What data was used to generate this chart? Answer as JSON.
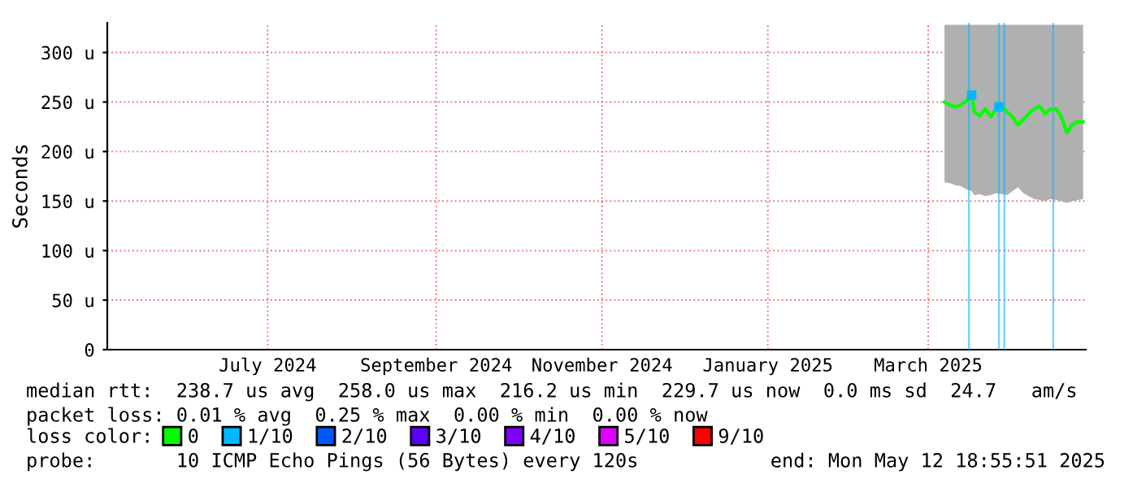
{
  "chart_data": {
    "type": "line",
    "ylabel": "Seconds",
    "xlim": [
      "2024-05-17",
      "2025-05-12"
    ],
    "xticks": [
      {
        "value": "2024-07-15",
        "label": "July 2024"
      },
      {
        "value": "2024-09-15",
        "label": "September 2024"
      },
      {
        "value": "2024-11-15",
        "label": "November 2024"
      },
      {
        "value": "2025-01-15",
        "label": "January 2025"
      },
      {
        "value": "2025-03-15",
        "label": "March 2025"
      }
    ],
    "ylim": [
      0,
      330
    ],
    "yticks": [
      0,
      {
        "value": 50,
        "label": "50 u"
      },
      {
        "value": 100,
        "label": "100 u"
      },
      {
        "value": 150,
        "label": "150 u"
      },
      {
        "value": 200,
        "label": "200 u"
      },
      {
        "value": 250,
        "label": "250 u"
      },
      {
        "value": 300,
        "label": "300 u"
      }
    ],
    "grid": true,
    "legend": "bottom",
    "legend_title": "loss color:",
    "series": [
      {
        "name": "0",
        "color": "#00ff00",
        "x": [
          "2025-03-21",
          "2025-03-23",
          "2025-03-25",
          "2025-03-27",
          "2025-03-29",
          "2025-03-31",
          "2025-04-01",
          "2025-04-03",
          "2025-04-05",
          "2025-04-07",
          "2025-04-09",
          "2025-04-11",
          "2025-04-13",
          "2025-04-15",
          "2025-04-17",
          "2025-04-19",
          "2025-04-21",
          "2025-04-23",
          "2025-04-25",
          "2025-04-27",
          "2025-04-29",
          "2025-05-01",
          "2025-05-03",
          "2025-05-05",
          "2025-05-07",
          "2025-05-09",
          "2025-05-11"
        ],
        "values": [
          250,
          247,
          245,
          247,
          251,
          257,
          240,
          236,
          243,
          235,
          243,
          246,
          240,
          235,
          227,
          232,
          238,
          243,
          246,
          238,
          243,
          243,
          235,
          219,
          227,
          230,
          230
        ],
        "lower": [
          169,
          168,
          166,
          165,
          162,
          160,
          156,
          157,
          155,
          156,
          158,
          157,
          156,
          160,
          164,
          158,
          155,
          152,
          151,
          150,
          152,
          151,
          150,
          148,
          150,
          151,
          152
        ],
        "upper": [
          328,
          328,
          328,
          328,
          328,
          328,
          328,
          328,
          328,
          328,
          328,
          328,
          328,
          328,
          328,
          328,
          328,
          328,
          328,
          328,
          328,
          328,
          328,
          328,
          328,
          328,
          328
        ]
      },
      {
        "name": "1/10",
        "color": "#00b8ff",
        "type": "scatter",
        "x": [
          "2025-03-31",
          "2025-04-10"
        ],
        "values": [
          257,
          245
        ]
      },
      {
        "name": "2/10",
        "color": "#0059ff",
        "type": "scatter"
      },
      {
        "name": "3/10",
        "color": "#5e00ff",
        "type": "scatter"
      },
      {
        "name": "4/10",
        "color": "#7e00ff",
        "type": "scatter"
      },
      {
        "name": "5/10",
        "color": "#dd00ff",
        "type": "scatter"
      },
      {
        "name": "9/10",
        "color": "#ff0000",
        "type": "scatter"
      }
    ],
    "ref_lines": [
      {
        "axis": "x",
        "value": "2025-03-30",
        "color": "#00b8ff"
      },
      {
        "axis": "x",
        "value": "2025-04-10",
        "color": "#00b8ff"
      },
      {
        "axis": "x",
        "value": "2025-04-12",
        "color": "#00b8ff"
      },
      {
        "axis": "x",
        "value": "2025-04-30",
        "color": "#00b8ff"
      }
    ],
    "annotations": [
      "median rtt:  238.7 us avg  258.0 us max  216.2 us min  229.7 us now  0.0 ms sd  24.7   am/s",
      "packet loss: 0.01 % avg  0.25 % max  0.00 % min  0.00 % now",
      "probe:       10 ICMP Echo Pings (56 Bytes) every 120s",
      "end: Mon May 12 18:55:51 2025"
    ]
  }
}
